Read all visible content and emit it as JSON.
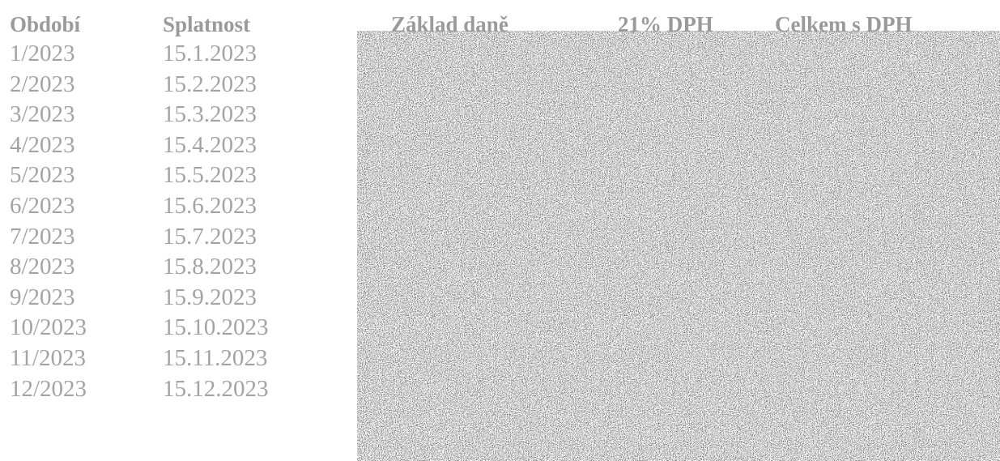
{
  "headers": {
    "period": "Období",
    "due": "Splatnost",
    "tax_base": "Základ daně",
    "vat": "21% DPH",
    "total": "Celkem s DPH"
  },
  "rows": [
    {
      "period": "1/2023",
      "due": "15.1.2023"
    },
    {
      "period": "2/2023",
      "due": "15.2.2023"
    },
    {
      "period": "3/2023",
      "due": "15.3.2023"
    },
    {
      "period": "4/2023",
      "due": "15.4.2023"
    },
    {
      "period": "5/2023",
      "due": "15.5.2023"
    },
    {
      "period": "6/2023",
      "due": "15.6.2023"
    },
    {
      "period": "7/2023",
      "due": "15.7.2023"
    },
    {
      "period": "8/2023",
      "due": "15.8.2023"
    },
    {
      "period": "9/2023",
      "due": "15.9.2023"
    },
    {
      "period": "10/2023",
      "due": "15.10.2023"
    },
    {
      "period": "11/2023",
      "due": "15.11.2023"
    },
    {
      "period": "12/2023",
      "due": "15.12.2023"
    }
  ],
  "colors": {
    "header_text": "#9a9a9a",
    "body_text": "#a3a3a3",
    "noise_dark": "#1a1a1a",
    "noise_light": "#ffffff"
  }
}
